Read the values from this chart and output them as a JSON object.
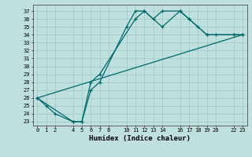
{
  "title": "",
  "xlabel": "Humidex (Indice chaleur)",
  "background_color": "#c0e0e0",
  "grid_color": "#a0cccc",
  "line_color": "#006868",
  "xticks": [
    0,
    1,
    2,
    4,
    5,
    6,
    7,
    8,
    10,
    11,
    12,
    13,
    14,
    16,
    17,
    18,
    19,
    20,
    22,
    23
  ],
  "yticks": [
    23,
    24,
    25,
    26,
    27,
    28,
    29,
    30,
    31,
    32,
    33,
    34,
    35,
    36,
    37
  ],
  "xlim": [
    -0.5,
    23.5
  ],
  "ylim": [
    22.5,
    37.8
  ],
  "series1_x": [
    0,
    1,
    2,
    4,
    5,
    6,
    7,
    10,
    11,
    12,
    13,
    14,
    16,
    17,
    18,
    19,
    20,
    22,
    23
  ],
  "series1_y": [
    26,
    25,
    24,
    23,
    23,
    27,
    28,
    35,
    37,
    37,
    36,
    37,
    37,
    36,
    35,
    34,
    34,
    34,
    34
  ],
  "series2_x": [
    0,
    4,
    5,
    6,
    7,
    11,
    12,
    14,
    16,
    17,
    19,
    22,
    23
  ],
  "series2_y": [
    26,
    23,
    23,
    28,
    29,
    36,
    37,
    35,
    37,
    36,
    34,
    34,
    34
  ],
  "series3_x": [
    0,
    23
  ],
  "series3_y": [
    26,
    34
  ]
}
